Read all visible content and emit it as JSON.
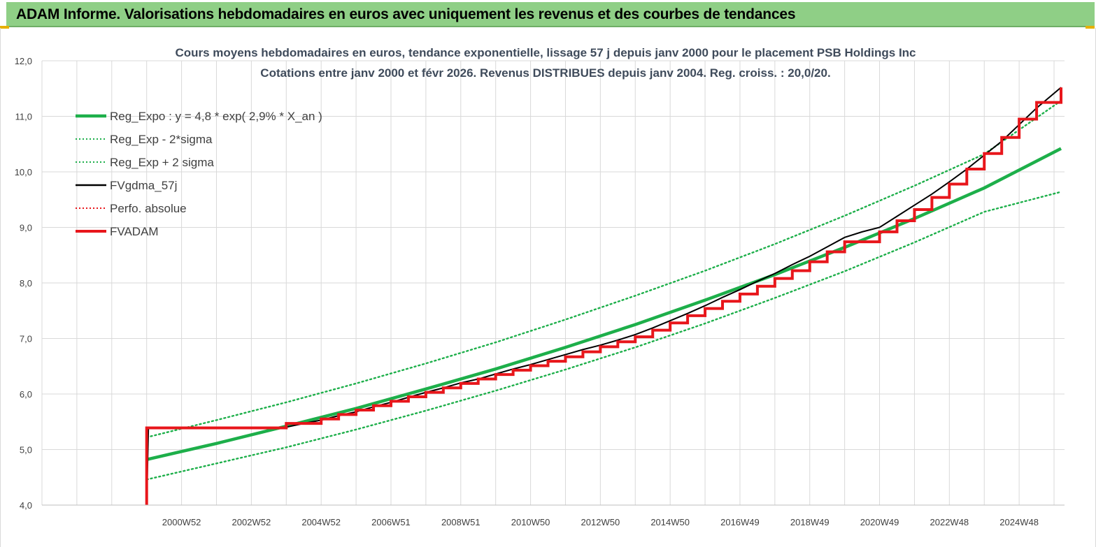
{
  "banner": {
    "title": "ADAM Informe. Valorisations hebdomadaires en euros avec uniquement les revenus et des courbes de tendances"
  },
  "colors": {
    "banner_bg": "#8fcf86",
    "regression": "#1daf4a",
    "price": "#000000",
    "adam": "#e8161b",
    "perf": "#e8161b",
    "grid": "#d9d9d9"
  },
  "chart_data": {
    "type": "line",
    "title": "Cours moyens hebdomadaires en euros, tendance exponentielle, lissage 57 j depuis janv 2000 pour le placement PSB Holdings Inc",
    "subtitle": "Cotations entre janv 2000 et févr 2026. Revenus DISTRIBUES depuis janv 2004. Reg. croiss. : 20,0/20.",
    "xlabel": "",
    "ylabel": "",
    "ylim": [
      4.0,
      12.0
    ],
    "y_ticks": [
      "4,0",
      "5,0",
      "6,0",
      "7,0",
      "8,0",
      "9,0",
      "10,0",
      "11,0",
      "12,0"
    ],
    "x_tick_labels": [
      "2000W52",
      "2002W52",
      "2004W52",
      "2006W51",
      "2008W51",
      "2010W50",
      "2012W50",
      "2014W50",
      "2016W49",
      "2018W49",
      "2020W49",
      "2022W48",
      "2024W48"
    ],
    "x_tick_years": [
      2001,
      2003,
      2005,
      2007,
      2009,
      2011,
      2013,
      2015,
      2017,
      2019,
      2021,
      2023,
      2025
    ],
    "xlim": [
      1997,
      2026.3
    ],
    "grid": true,
    "legend_position": "top-left",
    "series": [
      {
        "name": "Reg_Expo : y = 4,8 * exp( 2,9% *  X_an )",
        "style": "solid-thick",
        "color": "#1daf4a",
        "x": [
          2000.0,
          2002.0,
          2004.0,
          2006.0,
          2008.0,
          2010.0,
          2012.0,
          2014.0,
          2016.0,
          2018.0,
          2020.0,
          2022.0,
          2024.0,
          2026.2
        ],
        "y": [
          4.82,
          5.11,
          5.42,
          5.74,
          6.09,
          6.45,
          6.84,
          7.25,
          7.69,
          8.15,
          8.64,
          9.16,
          9.71,
          10.42
        ]
      },
      {
        "name": "Reg_Exp - 2*sigma",
        "style": "dotted",
        "color": "#1daf4a",
        "x": [
          2000.0,
          2002.0,
          2004.0,
          2006.0,
          2008.0,
          2010.0,
          2012.0,
          2014.0,
          2016.0,
          2018.0,
          2020.0,
          2022.0,
          2024.0,
          2026.2
        ],
        "y": [
          4.46,
          4.75,
          5.04,
          5.36,
          5.7,
          6.06,
          6.44,
          6.84,
          7.27,
          7.73,
          8.21,
          8.73,
          9.28,
          9.64
        ]
      },
      {
        "name": "Reg_Exp + 2 sigma",
        "style": "dotted",
        "color": "#1daf4a",
        "x": [
          2000.0,
          2002.0,
          2004.0,
          2006.0,
          2008.0,
          2010.0,
          2012.0,
          2014.0,
          2016.0,
          2018.0,
          2020.0,
          2022.0,
          2024.0,
          2026.2
        ],
        "y": [
          5.22,
          5.53,
          5.85,
          6.19,
          6.55,
          6.93,
          7.34,
          7.77,
          8.22,
          8.7,
          9.21,
          9.75,
          10.32,
          11.28
        ]
      },
      {
        "name": "FVgdma_57j",
        "style": "solid",
        "color": "#000000",
        "x": [
          2000.0,
          2000.05,
          2003.9,
          2004.5,
          2005.0,
          2005.5,
          2006.0,
          2006.5,
          2007.0,
          2007.5,
          2008.0,
          2008.5,
          2009.0,
          2009.5,
          2010.0,
          2010.5,
          2011.0,
          2011.5,
          2012.0,
          2012.5,
          2013.0,
          2013.5,
          2014.0,
          2014.5,
          2015.0,
          2015.5,
          2016.0,
          2016.5,
          2017.0,
          2017.5,
          2018.0,
          2018.5,
          2019.0,
          2019.5,
          2020.0,
          2020.5,
          2021.0,
          2021.5,
          2022.0,
          2022.5,
          2023.0,
          2023.5,
          2024.0,
          2024.5,
          2025.0,
          2025.5,
          2026.2
        ],
        "y": [
          4.0,
          5.39,
          5.39,
          5.47,
          5.53,
          5.61,
          5.68,
          5.77,
          5.85,
          5.94,
          6.03,
          6.11,
          6.2,
          6.27,
          6.36,
          6.45,
          6.53,
          6.62,
          6.71,
          6.8,
          6.88,
          6.97,
          7.07,
          7.19,
          7.32,
          7.45,
          7.59,
          7.74,
          7.88,
          8.03,
          8.17,
          8.33,
          8.48,
          8.65,
          8.82,
          8.92,
          9.0,
          9.2,
          9.4,
          9.6,
          9.82,
          10.05,
          10.3,
          10.55,
          10.85,
          11.15,
          11.52
        ]
      },
      {
        "name": "Perfo. absolue",
        "style": "dotted",
        "color": "#e8161b",
        "x": [],
        "y": []
      },
      {
        "name": "FVADAM",
        "style": "step-thick",
        "color": "#e8161b",
        "x": [
          2000.0,
          2000.0,
          2004.0,
          2005.0,
          2005.5,
          2006.0,
          2006.5,
          2007.0,
          2007.5,
          2008.0,
          2008.5,
          2009.0,
          2009.5,
          2010.0,
          2010.5,
          2011.0,
          2011.5,
          2012.0,
          2012.5,
          2013.0,
          2013.5,
          2014.0,
          2014.5,
          2015.0,
          2015.5,
          2016.0,
          2016.5,
          2017.0,
          2017.5,
          2018.0,
          2018.5,
          2019.0,
          2019.5,
          2020.0,
          2021.0,
          2021.5,
          2022.0,
          2022.5,
          2023.0,
          2023.5,
          2024.0,
          2024.5,
          2025.0,
          2025.5,
          2026.2
        ],
        "y": [
          4.0,
          5.39,
          5.47,
          5.55,
          5.63,
          5.71,
          5.79,
          5.87,
          5.95,
          6.03,
          6.11,
          6.19,
          6.27,
          6.35,
          6.43,
          6.51,
          6.59,
          6.67,
          6.76,
          6.85,
          6.94,
          7.03,
          7.15,
          7.28,
          7.41,
          7.54,
          7.67,
          7.8,
          7.94,
          8.08,
          8.22,
          8.38,
          8.56,
          8.74,
          8.92,
          9.12,
          9.32,
          9.54,
          9.78,
          10.05,
          10.33,
          10.62,
          10.95,
          11.25,
          11.52
        ]
      }
    ]
  }
}
